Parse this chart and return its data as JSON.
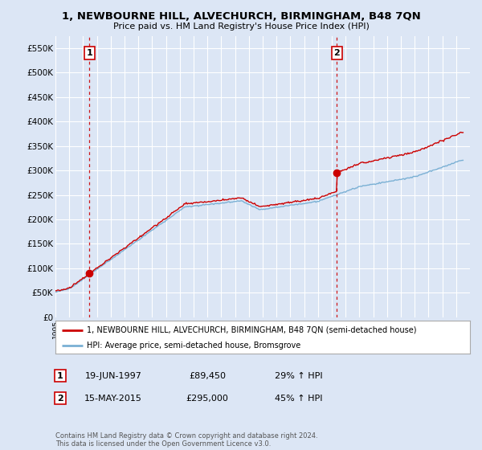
{
  "title": "1, NEWBOURNE HILL, ALVECHURCH, BIRMINGHAM, B48 7QN",
  "subtitle": "Price paid vs. HM Land Registry's House Price Index (HPI)",
  "ylim": [
    0,
    575000
  ],
  "yticks": [
    0,
    50000,
    100000,
    150000,
    200000,
    250000,
    300000,
    350000,
    400000,
    450000,
    500000,
    550000
  ],
  "ytick_labels": [
    "£0",
    "£50K",
    "£100K",
    "£150K",
    "£200K",
    "£250K",
    "£300K",
    "£350K",
    "£400K",
    "£450K",
    "£500K",
    "£550K"
  ],
  "background_color": "#dce6f5",
  "plot_bg_color": "#dce6f5",
  "grid_color": "#ffffff",
  "legend_items": [
    "1, NEWBOURNE HILL, ALVECHURCH, BIRMINGHAM, B48 7QN (semi-detached house)",
    "HPI: Average price, semi-detached house, Bromsgrove"
  ],
  "legend_colors": [
    "#cc0000",
    "#7ab0d4"
  ],
  "transaction1_date": "19-JUN-1997",
  "transaction1_price": 89450,
  "transaction1_price_str": "£89,450",
  "transaction1_hpi": "29% ↑ HPI",
  "transaction1_label": "1",
  "transaction1_year": 1997.46,
  "transaction2_date": "15-MAY-2015",
  "transaction2_price": 295000,
  "transaction2_price_str": "£295,000",
  "transaction2_hpi": "45% ↑ HPI",
  "transaction2_label": "2",
  "transaction2_year": 2015.37,
  "footnote": "Contains HM Land Registry data © Crown copyright and database right 2024.\nThis data is licensed under the Open Government Licence v3.0.",
  "vline_color": "#cc0000",
  "marker_color": "#cc0000",
  "red_line_color": "#cc0000",
  "blue_line_color": "#7ab0d4",
  "xlim_start": 1995,
  "xlim_end": 2025
}
